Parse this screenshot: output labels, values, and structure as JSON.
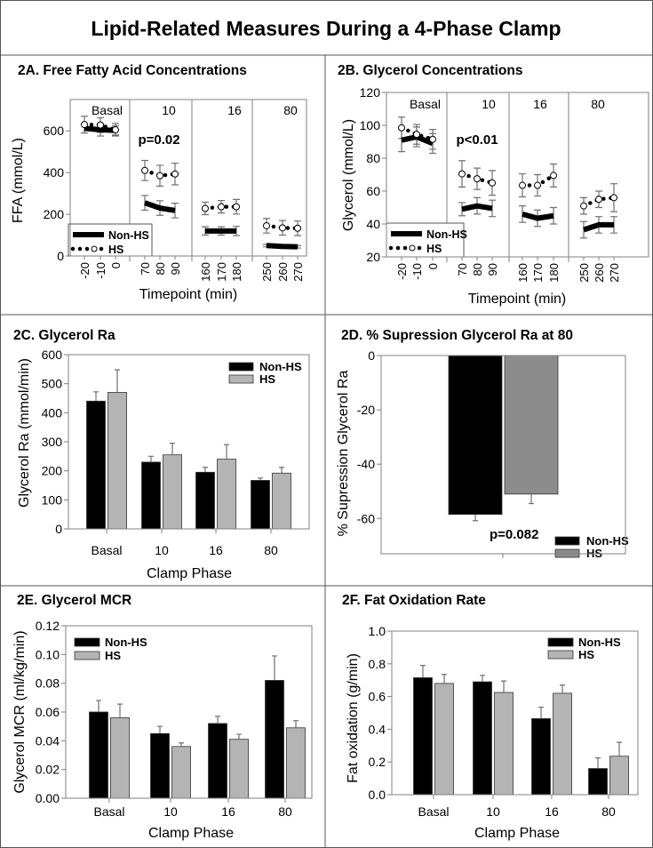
{
  "figure_title": "Lipid-Related Measures During a 4-Phase Clamp",
  "colors": {
    "non_hs": "#000000",
    "hs_bar": "#b4b4b4",
    "hs_bar_dark": "#8c8c8c",
    "error_bar": "#707070",
    "frame": "#808080"
  },
  "chart_data": [
    {
      "id": "2A",
      "type": "line",
      "title": "2A. Free Fatty Acid Concentrations",
      "xlabel": "Timepoint (min)",
      "ylabel": "FFA (mmol/L)",
      "ylim": [
        0,
        750
      ],
      "yticks": [
        "0",
        "200",
        "400",
        "600"
      ],
      "phases": [
        "Basal",
        "10",
        "16",
        "80"
      ],
      "x": [
        -20,
        -10,
        0,
        70,
        80,
        90,
        160,
        170,
        180,
        250,
        260,
        270
      ],
      "x_tick_labels": [
        "-20",
        "-10",
        "0",
        "70",
        "80",
        "90",
        "160",
        "170",
        "180",
        "250",
        "260",
        "270"
      ],
      "annotation": "p=0.02",
      "legend": [
        "Non-HS",
        "HS"
      ],
      "legend_position": "bottom-left",
      "series": [
        {
          "name": "Non-HS",
          "values": [
            612,
            605,
            602,
            255,
            230,
            218,
            120,
            120,
            120,
            50,
            46,
            44
          ],
          "errors": [
            22,
            30,
            22,
            35,
            35,
            35,
            20,
            20,
            22,
            6,
            6,
            6
          ]
        },
        {
          "name": "HS",
          "values": [
            630,
            628,
            605,
            410,
            385,
            393,
            228,
            236,
            236,
            145,
            135,
            133
          ],
          "errors": [
            40,
            35,
            30,
            48,
            50,
            52,
            30,
            30,
            35,
            35,
            35,
            35
          ]
        }
      ]
    },
    {
      "id": "2B",
      "type": "line",
      "title": "2B. Glycerol Concentrations",
      "xlabel": "Timepoint (min)",
      "ylabel": "Glycerol (mmol/L)",
      "ylim": [
        20,
        120
      ],
      "yticks": [
        "20",
        "40",
        "60",
        "80",
        "100",
        "120"
      ],
      "phases": [
        "Basal",
        "10",
        "16",
        "80"
      ],
      "x": [
        -20,
        -10,
        0,
        70,
        80,
        90,
        160,
        170,
        180,
        250,
        260,
        270
      ],
      "x_tick_labels": [
        "-20",
        "-10",
        "0",
        "70",
        "80",
        "90",
        "160",
        "170",
        "180",
        "250",
        "260",
        "270"
      ],
      "annotation": "p<0.01",
      "legend": [
        "Non-HS",
        "HS"
      ],
      "legend_position": "bottom-left",
      "series": [
        {
          "name": "Non-HS",
          "values": [
            91,
            93,
            89,
            49,
            51,
            49.5,
            46,
            43.5,
            45,
            36.5,
            39.5,
            39.5
          ],
          "errors": [
            7,
            6,
            6,
            4,
            5,
            5,
            5,
            5,
            5,
            5,
            5,
            5
          ]
        },
        {
          "name": "HS",
          "values": [
            98.5,
            94.5,
            91.5,
            70.5,
            67.5,
            65,
            63.5,
            63.5,
            69.5,
            51,
            55,
            56
          ],
          "errors": [
            6.5,
            6,
            6,
            8,
            6.5,
            7.5,
            7,
            6.5,
            7,
            5,
            5,
            8.5
          ]
        }
      ]
    },
    {
      "id": "2C",
      "type": "bar",
      "title": "2C. Glycerol Ra",
      "xlabel": "Clamp Phase",
      "ylabel": "Glycerol Ra (mmol/min)",
      "ylim": [
        0,
        600
      ],
      "yticks": [
        "0",
        "100",
        "200",
        "300",
        "400",
        "500",
        "600"
      ],
      "categories": [
        "Basal",
        "10",
        "16",
        "80"
      ],
      "legend": [
        "Non-HS",
        "HS"
      ],
      "legend_position": "top-right",
      "series": [
        {
          "name": "Non-HS",
          "values": [
            440,
            230,
            195,
            167
          ],
          "errors": [
            32,
            20,
            17,
            8
          ]
        },
        {
          "name": "HS",
          "values": [
            470,
            255,
            240,
            192
          ],
          "errors": [
            78,
            40,
            50,
            20
          ]
        }
      ]
    },
    {
      "id": "2D",
      "type": "bar",
      "title": "2D. % Supression Glycerol Ra at 80",
      "xlabel": "",
      "ylabel": "% Supression Glycerol Ra",
      "ylim": [
        -73,
        0
      ],
      "yticks": [
        "0",
        "-20",
        "-40",
        "-60"
      ],
      "annotation": "p=0.082",
      "legend": [
        "Non-HS",
        "HS"
      ],
      "legend_position": "bottom-right",
      "series": [
        {
          "name": "Non-HS",
          "values": [
            -58.5
          ],
          "errors": [
            2.3
          ]
        },
        {
          "name": "HS",
          "values": [
            -51
          ],
          "errors": [
            3.5
          ]
        }
      ]
    },
    {
      "id": "2E",
      "type": "bar",
      "title": "2E. Glycerol MCR",
      "xlabel": "Clamp Phase",
      "ylabel": "Glycerol MCR (ml/kg/min)",
      "ylim": [
        0,
        0.12
      ],
      "yticks": [
        "0.00",
        "0.02",
        "0.04",
        "0.06",
        "0.08",
        "0.10",
        "0.12"
      ],
      "categories": [
        "Basal",
        "10",
        "16",
        "80"
      ],
      "legend": [
        "Non-HS",
        "HS"
      ],
      "legend_position": "top-left",
      "series": [
        {
          "name": "Non-HS",
          "values": [
            0.06,
            0.045,
            0.052,
            0.082
          ],
          "errors": [
            0.008,
            0.005,
            0.005,
            0.017
          ]
        },
        {
          "name": "HS",
          "values": [
            0.056,
            0.036,
            0.041,
            0.049
          ],
          "errors": [
            0.0095,
            0.0025,
            0.0035,
            0.005
          ]
        }
      ]
    },
    {
      "id": "2F",
      "type": "bar",
      "title": "2F. Fat Oxidation Rate",
      "xlabel": "Clamp Phase",
      "ylabel": "Fat oxidation (g/min)",
      "ylim": [
        0,
        1.0
      ],
      "yticks": [
        "0.0",
        "0.2",
        "0.4",
        "0.6",
        "0.8",
        "1.0"
      ],
      "categories": [
        "Basal",
        "10",
        "16",
        "80"
      ],
      "legend": [
        "Non-HS",
        "HS"
      ],
      "legend_position": "top-right",
      "series": [
        {
          "name": "Non-HS",
          "values": [
            0.715,
            0.69,
            0.465,
            0.16
          ],
          "errors": [
            0.075,
            0.04,
            0.07,
            0.065
          ]
        },
        {
          "name": "HS",
          "values": [
            0.68,
            0.625,
            0.62,
            0.235
          ],
          "errors": [
            0.055,
            0.07,
            0.05,
            0.085
          ]
        }
      ]
    }
  ]
}
